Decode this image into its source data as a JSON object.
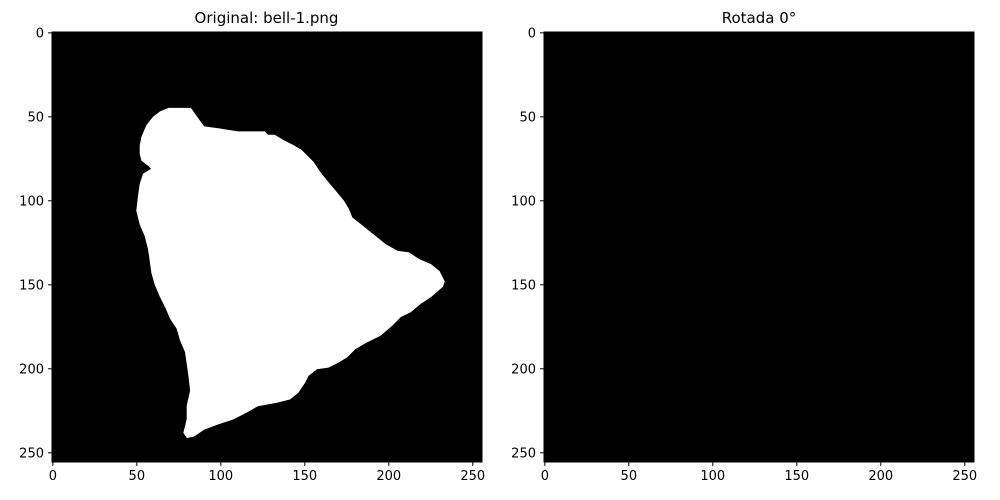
{
  "figure": {
    "background": "#ffffff"
  },
  "chart_data": [
    {
      "type": "heatmap",
      "title": "Original: bell-1.png",
      "xlabel": "",
      "ylabel": "",
      "image_shape": [
        256,
        256
      ],
      "xlim": [
        -0.5,
        255.5
      ],
      "ylim": [
        255.5,
        -0.5
      ],
      "x_ticks": [
        0,
        50,
        100,
        150,
        200,
        250
      ],
      "y_ticks": [
        0,
        50,
        100,
        150,
        200,
        250
      ],
      "background_color": "#000000",
      "foreground_color": "#ffffff",
      "shape_name": "bell-mask",
      "shape_outline": [
        [
          69,
          45
        ],
        [
          82,
          45
        ],
        [
          87,
          52
        ],
        [
          90,
          56
        ],
        [
          98,
          57
        ],
        [
          110,
          59
        ],
        [
          126,
          59
        ],
        [
          128,
          61
        ],
        [
          132,
          61
        ],
        [
          137,
          64
        ],
        [
          143,
          67
        ],
        [
          148,
          70
        ],
        [
          155,
          77
        ],
        [
          159,
          83
        ],
        [
          163,
          88
        ],
        [
          168,
          94
        ],
        [
          173,
          100
        ],
        [
          176,
          105
        ],
        [
          178,
          110
        ],
        [
          183,
          114
        ],
        [
          188,
          118
        ],
        [
          193,
          122
        ],
        [
          198,
          126
        ],
        [
          205,
          130
        ],
        [
          212,
          131
        ],
        [
          218,
          135
        ],
        [
          225,
          138
        ],
        [
          230,
          142
        ],
        [
          233,
          148
        ],
        [
          232,
          151
        ],
        [
          225,
          157
        ],
        [
          219,
          161
        ],
        [
          213,
          166
        ],
        [
          207,
          169
        ],
        [
          202,
          174
        ],
        [
          195,
          180
        ],
        [
          187,
          184
        ],
        [
          180,
          188
        ],
        [
          175,
          193
        ],
        [
          170,
          196
        ],
        [
          164,
          199
        ],
        [
          157,
          200
        ],
        [
          152,
          204
        ],
        [
          150,
          208
        ],
        [
          146,
          214
        ],
        [
          141,
          218
        ],
        [
          133,
          220
        ],
        [
          122,
          222
        ],
        [
          115,
          226
        ],
        [
          107,
          230
        ],
        [
          98,
          233
        ],
        [
          90,
          236
        ],
        [
          84,
          240
        ],
        [
          80,
          241
        ],
        [
          78,
          238
        ],
        [
          80,
          230
        ],
        [
          80,
          222
        ],
        [
          82,
          213
        ],
        [
          81,
          204
        ],
        [
          80,
          197
        ],
        [
          79,
          190
        ],
        [
          76,
          183
        ],
        [
          74,
          176
        ],
        [
          70,
          170
        ],
        [
          67,
          163
        ],
        [
          64,
          157
        ],
        [
          61,
          150
        ],
        [
          59,
          143
        ],
        [
          58,
          136
        ],
        [
          57,
          129
        ],
        [
          55,
          121
        ],
        [
          52,
          114
        ],
        [
          50,
          106
        ],
        [
          51,
          97
        ],
        [
          52,
          90
        ],
        [
          54,
          84
        ],
        [
          59,
          81
        ],
        [
          57,
          79
        ],
        [
          53,
          76
        ],
        [
          52,
          72
        ],
        [
          52,
          67
        ],
        [
          53,
          62
        ],
        [
          56,
          55
        ],
        [
          60,
          50
        ],
        [
          64,
          47
        ]
      ]
    },
    {
      "type": "heatmap",
      "title": "Rotada 0°",
      "xlabel": "",
      "ylabel": "",
      "image_shape": [
        256,
        256
      ],
      "xlim": [
        -0.5,
        255.5
      ],
      "ylim": [
        255.5,
        -0.5
      ],
      "x_ticks": [
        0,
        50,
        100,
        150,
        200,
        250
      ],
      "y_ticks": [
        0,
        50,
        100,
        150,
        200,
        250
      ],
      "background_color": "#000000",
      "foreground_color": "#ffffff",
      "shape_outline": []
    }
  ]
}
